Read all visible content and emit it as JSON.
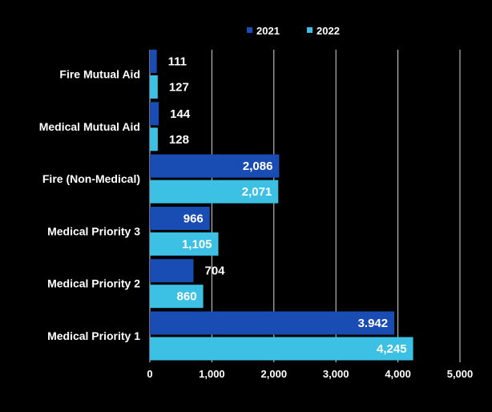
{
  "chart_data": {
    "type": "bar",
    "orientation": "horizontal",
    "categories": [
      "Fire Mutual Aid",
      "Medical Mutual Aid",
      "Fire (Non-Medical)",
      "Medical Priority 3",
      "Medical Priority 2",
      "Medical Priority 1"
    ],
    "series": [
      {
        "name": "2021",
        "color": "#1a4db3",
        "values": [
          111,
          144,
          2086,
          966,
          704,
          3942
        ],
        "labels": [
          "111",
          "144",
          "2,086",
          "966",
          "704",
          "3.942"
        ]
      },
      {
        "name": "2022",
        "color": "#3cc0e3",
        "values": [
          127,
          128,
          2071,
          1105,
          860,
          4245
        ],
        "labels": [
          "127",
          "128",
          "2,071",
          "1,105",
          "860",
          "4,245"
        ]
      }
    ],
    "xlim": [
      0,
      5000
    ],
    "xticks": [
      0,
      1000,
      2000,
      3000,
      4000,
      5000
    ],
    "xtick_labels": [
      "0",
      "1,000",
      "2,000",
      "3,000",
      "4,000",
      "5,000"
    ],
    "grid": "vertical",
    "legend": "top"
  }
}
